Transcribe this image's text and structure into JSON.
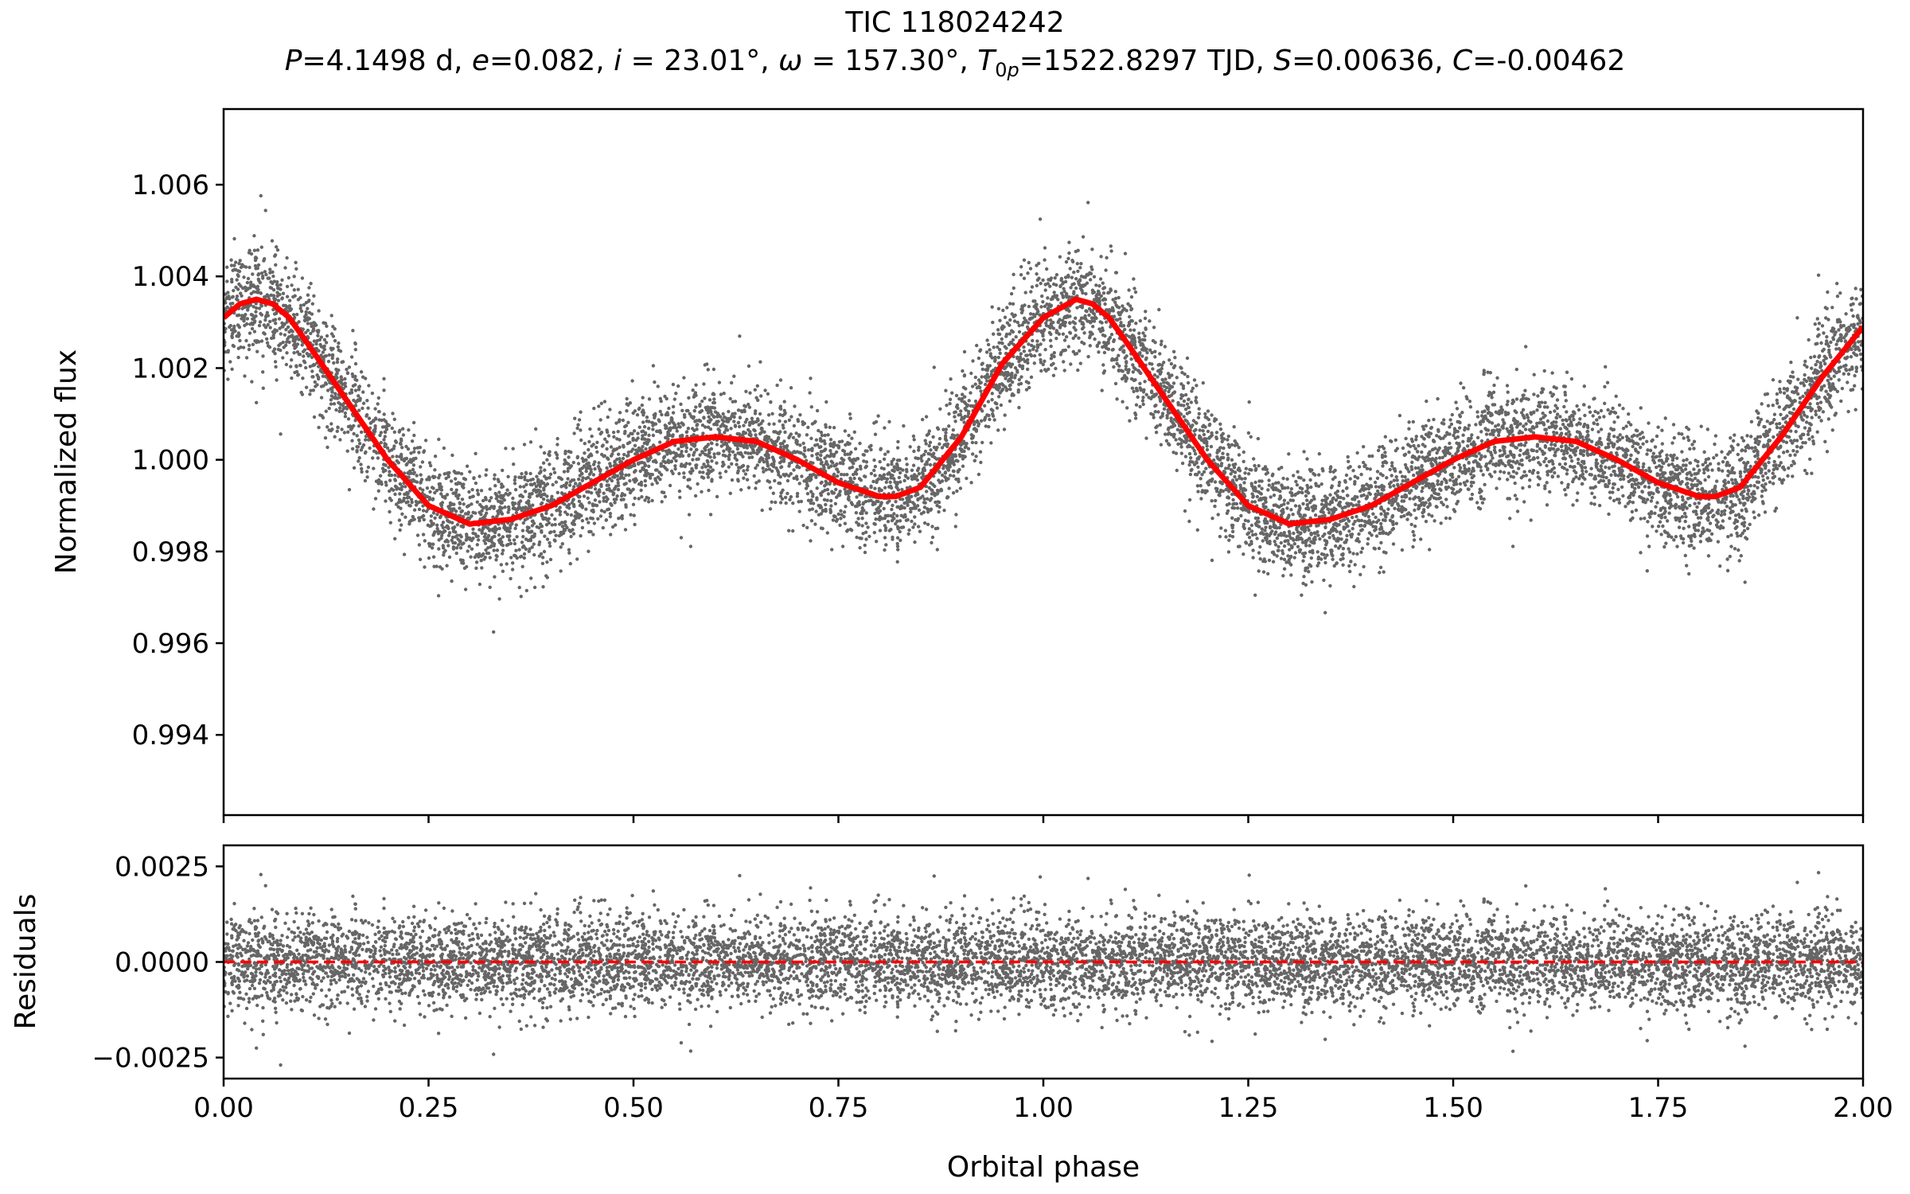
{
  "title": "TIC 118024242",
  "subtitle": {
    "P": "4.1498 d",
    "e": "0.082",
    "i": "23.01°",
    "omega": "157.30°",
    "T0p": "1522.8297 TJD",
    "S": "0.00636",
    "C": "-0.00462"
  },
  "colors": {
    "data_points": "#000000",
    "model_curve": "#ff0000",
    "zero_line": "#ff0000",
    "axes": "#000000"
  },
  "chart_data": [
    {
      "type": "scatter",
      "panel": "top",
      "xlabel": "",
      "ylabel": "Normalized flux",
      "xlim": [
        0.0,
        2.0
      ],
      "ylim": [
        0.99225,
        1.00765
      ],
      "yticks": [
        0.994,
        0.996,
        0.998,
        1.0,
        1.002,
        1.004,
        1.006
      ],
      "ytick_labels": [
        "0.994",
        "0.996",
        "0.998",
        "1.000",
        "1.002",
        "1.004",
        "1.006"
      ],
      "xticks": [
        0.0,
        0.25,
        0.5,
        0.75,
        1.0,
        1.25,
        1.5,
        1.75,
        2.0
      ],
      "grid": false,
      "series": [
        {
          "kind": "points",
          "description_points": "phase-folded photometry, scatter approx ±0.0006 around model",
          "scatter_sigma": 0.0006
        },
        {
          "kind": "line",
          "model_curve": {
            "x": [
              0.0,
              0.02,
              0.04,
              0.06,
              0.08,
              0.1,
              0.15,
              0.2,
              0.25,
              0.3,
              0.35,
              0.4,
              0.45,
              0.5,
              0.55,
              0.6,
              0.65,
              0.7,
              0.75,
              0.8,
              0.82,
              0.85,
              0.9,
              0.95,
              1.0,
              1.04,
              1.06,
              1.08,
              1.1,
              1.15,
              1.2,
              1.25,
              1.3,
              1.35,
              1.4,
              1.45,
              1.5,
              1.55,
              1.6,
              1.65,
              1.7,
              1.75,
              1.8,
              1.82,
              1.85,
              1.9,
              1.95,
              2.0
            ],
            "y": [
              1.0031,
              1.0034,
              1.0035,
              1.0034,
              1.0031,
              1.0026,
              1.0013,
              1.0,
              0.999,
              0.9986,
              0.9987,
              0.999,
              0.9995,
              1.0,
              1.0004,
              1.0005,
              1.0004,
              1.0,
              0.9995,
              0.9992,
              0.9992,
              0.9994,
              1.0005,
              1.0021,
              1.0031,
              1.0035,
              1.0034,
              1.0031,
              1.0026,
              1.0013,
              1.0,
              0.999,
              0.9986,
              0.9987,
              0.999,
              0.9995,
              1.0,
              1.0004,
              1.0005,
              1.0004,
              1.0,
              0.9995,
              0.9992,
              0.9992,
              0.9994,
              1.0005,
              1.0018,
              1.0029
            ]
          }
        }
      ]
    },
    {
      "type": "scatter",
      "panel": "bottom",
      "xlabel": "Orbital phase",
      "ylabel": "Residuals",
      "xlim": [
        0.0,
        2.0
      ],
      "ylim": [
        -0.00305,
        0.00305
      ],
      "yticks": [
        -0.0025,
        0.0,
        0.0025
      ],
      "ytick_labels": [
        "−0.0025",
        "0.0000",
        "0.0025"
      ],
      "xticks": [
        0.0,
        0.25,
        0.5,
        0.75,
        1.0,
        1.25,
        1.5,
        1.75,
        2.0
      ],
      "xtick_labels": [
        "0.00",
        "0.25",
        "0.50",
        "0.75",
        "1.00",
        "1.25",
        "1.50",
        "1.75",
        "2.00"
      ],
      "grid": false,
      "series": [
        {
          "kind": "points",
          "description_points": "residuals scattered about zero",
          "scatter_sigma": 0.0006
        },
        {
          "kind": "hline",
          "y": 0.0,
          "style": "dashed"
        }
      ]
    }
  ]
}
